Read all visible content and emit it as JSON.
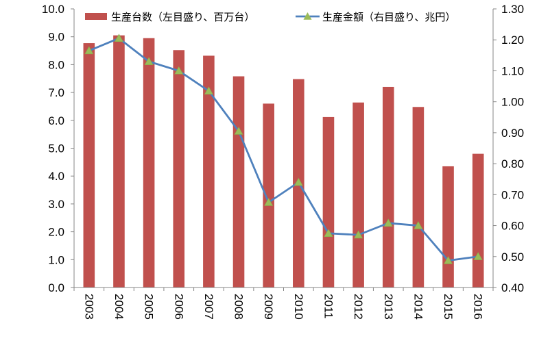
{
  "chart_data": {
    "type": "bar+line",
    "categories": [
      "2003",
      "2004",
      "2005",
      "2006",
      "2007",
      "2008",
      "2009",
      "2010",
      "2011",
      "2012",
      "2013",
      "2014",
      "2015",
      "2016"
    ],
    "series": [
      {
        "name": "生産台数（左目盛り、百万台）",
        "type": "bar",
        "axis": "left",
        "color": "#c0504d",
        "values": [
          8.77,
          9.05,
          8.95,
          8.52,
          8.32,
          7.58,
          6.6,
          7.48,
          6.12,
          6.64,
          7.2,
          6.48,
          4.35,
          4.8
        ]
      },
      {
        "name": "生産金額（右目盛り、兆円）",
        "type": "line",
        "axis": "right",
        "color": "#4f81bd",
        "marker_color": "#9bbb59",
        "values": [
          1.165,
          1.205,
          1.13,
          1.1,
          1.035,
          0.905,
          0.675,
          0.74,
          0.575,
          0.57,
          0.608,
          0.6,
          0.487,
          0.5
        ]
      }
    ],
    "y_left": {
      "min": 0,
      "max": 10,
      "step": 1,
      "decimals": 1
    },
    "y_right": {
      "min": 0.4,
      "max": 1.3,
      "step": 0.1,
      "decimals": 2
    },
    "legend_position": "top",
    "grid": false
  }
}
